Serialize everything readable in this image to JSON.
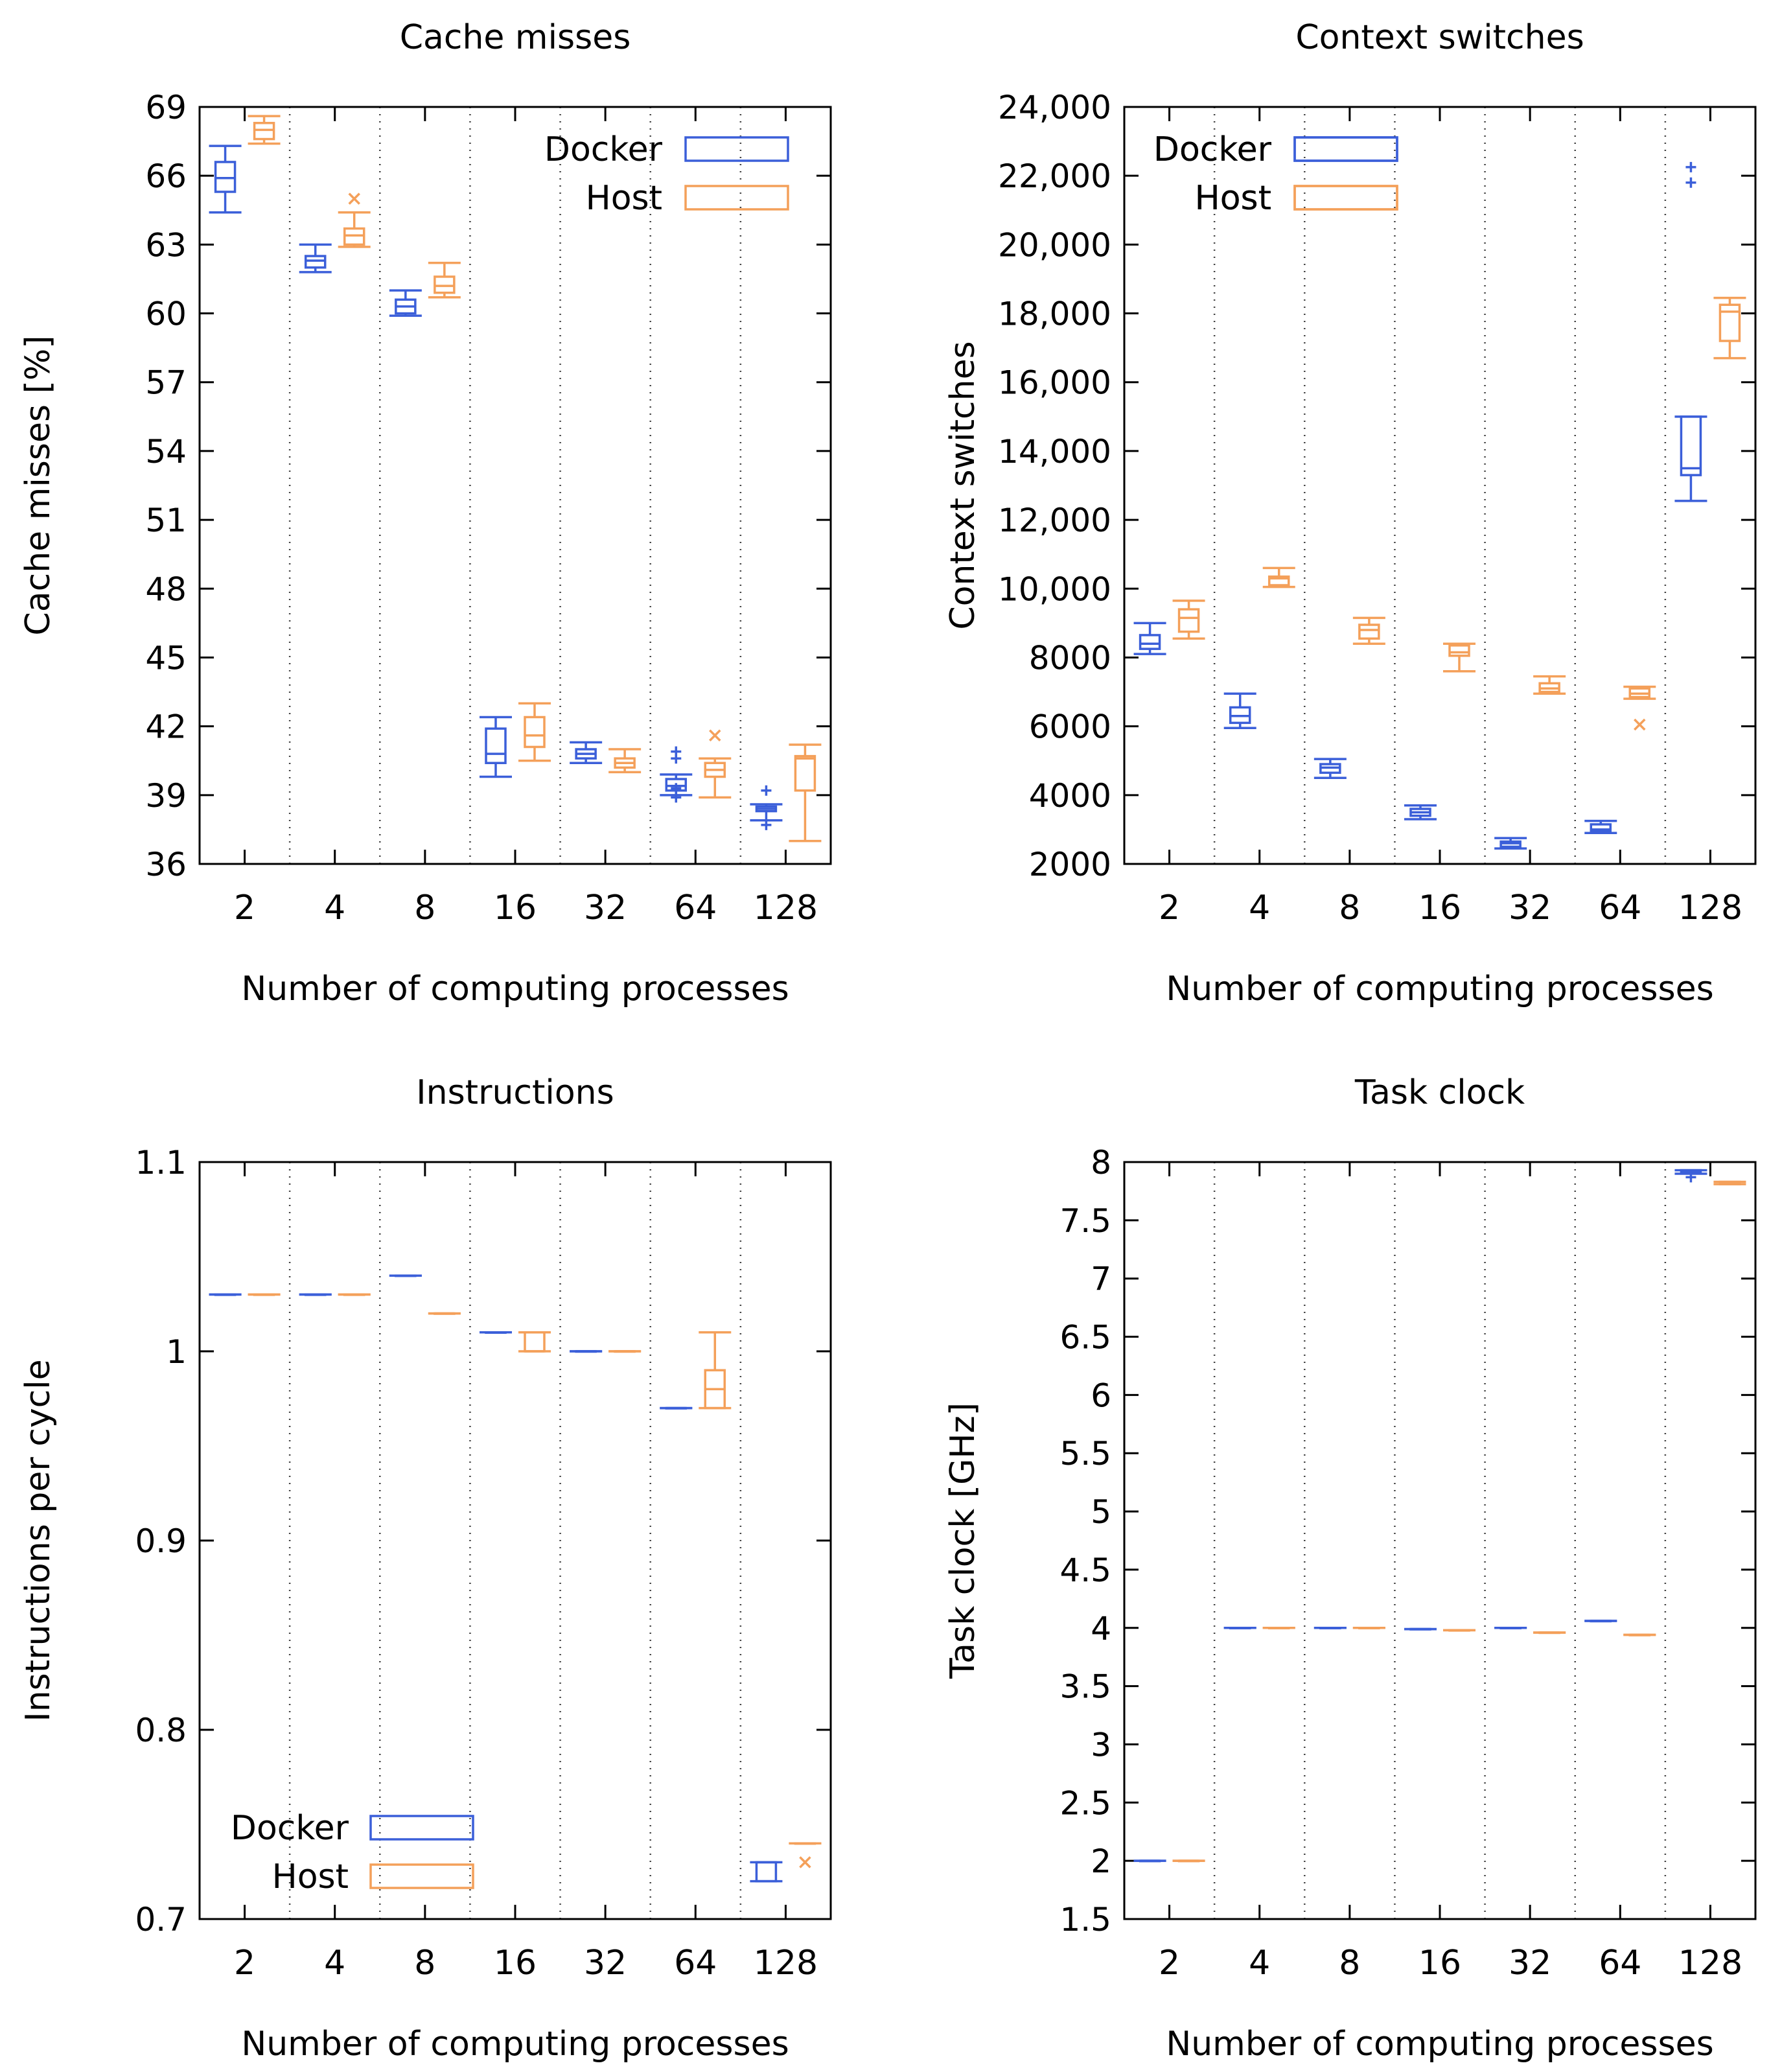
{
  "colors": {
    "docker": "#3b5fd9",
    "host": "#f4a05a",
    "axis": "#000000",
    "separator": "#444444"
  },
  "chart_data": [
    {
      "id": "cache",
      "type": "box",
      "title": "Cache misses",
      "xlabel": "Number of computing processes",
      "ylabel": "Cache misses [%]",
      "categories": [
        "2",
        "4",
        "8",
        "16",
        "32",
        "64",
        "128"
      ],
      "ylim": [
        36,
        69
      ],
      "yticks": [
        36,
        39,
        42,
        45,
        48,
        51,
        54,
        57,
        60,
        63,
        66,
        69
      ],
      "ytick_labels": [
        "36",
        "39",
        "42",
        "45",
        "48",
        "51",
        "54",
        "57",
        "60",
        "63",
        "66",
        "69"
      ],
      "legend_position": "top-right",
      "series": [
        {
          "name": "Docker",
          "boxes": [
            {
              "min": 64.4,
              "q1": 65.3,
              "median": 65.9,
              "q3": 66.6,
              "max": 67.3
            },
            {
              "min": 61.8,
              "q1": 62.0,
              "median": 62.3,
              "q3": 62.5,
              "max": 63.0
            },
            {
              "min": 59.9,
              "q1": 60.0,
              "median": 60.3,
              "q3": 60.6,
              "max": 61.0
            },
            {
              "min": 39.8,
              "q1": 40.4,
              "median": 40.8,
              "q3": 41.9,
              "max": 42.4
            },
            {
              "min": 40.4,
              "q1": 40.6,
              "median": 40.8,
              "q3": 41.0,
              "max": 41.3
            },
            {
              "min": 39.0,
              "q1": 39.2,
              "median": 39.4,
              "q3": 39.7,
              "max": 39.9,
              "outliers": [
                40.9,
                40.6,
                38.9,
                39.3
              ]
            },
            {
              "min": 37.9,
              "q1": 38.3,
              "median": 38.4,
              "q3": 38.5,
              "max": 38.6,
              "outliers": [
                39.2,
                37.7
              ]
            }
          ]
        },
        {
          "name": "Host",
          "boxes": [
            {
              "min": 67.4,
              "q1": 67.6,
              "median": 68.0,
              "q3": 68.3,
              "max": 68.6
            },
            {
              "min": 62.9,
              "q1": 63.0,
              "median": 63.4,
              "q3": 63.7,
              "max": 64.4,
              "outliers": [
                65.0
              ]
            },
            {
              "min": 60.7,
              "q1": 60.9,
              "median": 61.2,
              "q3": 61.6,
              "max": 62.2
            },
            {
              "min": 40.5,
              "q1": 41.1,
              "median": 41.6,
              "q3": 42.4,
              "max": 43.0
            },
            {
              "min": 40.0,
              "q1": 40.2,
              "median": 40.4,
              "q3": 40.6,
              "max": 41.0
            },
            {
              "min": 38.9,
              "q1": 39.8,
              "median": 40.1,
              "q3": 40.4,
              "max": 40.6,
              "outliers": [
                41.6
              ]
            },
            {
              "min": 37.0,
              "q1": 39.2,
              "median": 40.6,
              "q3": 40.7,
              "max": 41.2
            }
          ]
        }
      ]
    },
    {
      "id": "ctx",
      "type": "box",
      "title": "Context switches",
      "xlabel": "Number of computing processes",
      "ylabel": "Context switches",
      "categories": [
        "2",
        "4",
        "8",
        "16",
        "32",
        "64",
        "128"
      ],
      "ylim": [
        2000,
        24000
      ],
      "yticks": [
        2000,
        4000,
        6000,
        8000,
        10000,
        12000,
        14000,
        16000,
        18000,
        20000,
        22000,
        24000
      ],
      "ytick_labels": [
        "2000",
        "4000",
        "6000",
        "8000",
        "10,000",
        "12,000",
        "14,000",
        "16,000",
        "18,000",
        "20,000",
        "22,000",
        "24,000"
      ],
      "legend_position": "top-left",
      "series": [
        {
          "name": "Docker",
          "boxes": [
            {
              "min": 8100,
              "q1": 8250,
              "median": 8400,
              "q3": 8650,
              "max": 9000
            },
            {
              "min": 5950,
              "q1": 6100,
              "median": 6300,
              "q3": 6550,
              "max": 6950
            },
            {
              "min": 4500,
              "q1": 4650,
              "median": 4800,
              "q3": 4900,
              "max": 5050
            },
            {
              "min": 3300,
              "q1": 3400,
              "median": 3500,
              "q3": 3600,
              "max": 3700
            },
            {
              "min": 2450,
              "q1": 2500,
              "median": 2600,
              "q3": 2650,
              "max": 2750
            },
            {
              "min": 2900,
              "q1": 2950,
              "median": 3000,
              "q3": 3150,
              "max": 3250
            },
            {
              "min": 12550,
              "q1": 13300,
              "median": 13500,
              "q3": 15000,
              "max": 15000,
              "outliers": [
                22250,
                21800
              ]
            }
          ]
        },
        {
          "name": "Host",
          "boxes": [
            {
              "min": 8550,
              "q1": 8750,
              "median": 9150,
              "q3": 9400,
              "max": 9650
            },
            {
              "min": 10050,
              "q1": 10100,
              "median": 10300,
              "q3": 10350,
              "max": 10600
            },
            {
              "min": 8400,
              "q1": 8550,
              "median": 8800,
              "q3": 8950,
              "max": 9150
            },
            {
              "min": 7600,
              "q1": 8050,
              "median": 8150,
              "q3": 8350,
              "max": 8400
            },
            {
              "min": 6950,
              "q1": 7000,
              "median": 7100,
              "q3": 7250,
              "max": 7450
            },
            {
              "min": 6800,
              "q1": 6850,
              "median": 6950,
              "q3": 7100,
              "max": 7150,
              "outliers": [
                6050
              ]
            },
            {
              "min": 16700,
              "q1": 17200,
              "median": 18050,
              "q3": 18250,
              "max": 18450
            }
          ]
        }
      ]
    },
    {
      "id": "ipc",
      "type": "box",
      "title": "Instructions",
      "xlabel": "Number of computing processes",
      "ylabel": "Instructions per cycle",
      "categories": [
        "2",
        "4",
        "8",
        "16",
        "32",
        "64",
        "128"
      ],
      "ylim": [
        0.7,
        1.1
      ],
      "yticks": [
        0.7,
        0.8,
        0.9,
        1.0,
        1.1
      ],
      "ytick_labels": [
        "0.7",
        "0.8",
        "0.9",
        "1",
        "1.1"
      ],
      "legend_position": "bottom-left",
      "series": [
        {
          "name": "Docker",
          "boxes": [
            {
              "min": 1.03,
              "q1": 1.03,
              "median": 1.03,
              "q3": 1.03,
              "max": 1.03
            },
            {
              "min": 1.03,
              "q1": 1.03,
              "median": 1.03,
              "q3": 1.03,
              "max": 1.03
            },
            {
              "min": 1.04,
              "q1": 1.04,
              "median": 1.04,
              "q3": 1.04,
              "max": 1.04
            },
            {
              "min": 1.01,
              "q1": 1.01,
              "median": 1.01,
              "q3": 1.01,
              "max": 1.01
            },
            {
              "min": 1.0,
              "q1": 1.0,
              "median": 1.0,
              "q3": 1.0,
              "max": 1.0
            },
            {
              "min": 0.97,
              "q1": 0.97,
              "median": 0.97,
              "q3": 0.97,
              "max": 0.97
            },
            {
              "min": 0.72,
              "q1": 0.72,
              "median": 0.73,
              "q3": 0.73,
              "max": 0.73
            }
          ]
        },
        {
          "name": "Host",
          "boxes": [
            {
              "min": 1.03,
              "q1": 1.03,
              "median": 1.03,
              "q3": 1.03,
              "max": 1.03
            },
            {
              "min": 1.03,
              "q1": 1.03,
              "median": 1.03,
              "q3": 1.03,
              "max": 1.03
            },
            {
              "min": 1.02,
              "q1": 1.02,
              "median": 1.02,
              "q3": 1.02,
              "max": 1.02
            },
            {
              "min": 1.0,
              "q1": 1.0,
              "median": 1.0,
              "q3": 1.01,
              "max": 1.01
            },
            {
              "min": 1.0,
              "q1": 1.0,
              "median": 1.0,
              "q3": 1.0,
              "max": 1.0
            },
            {
              "min": 0.97,
              "q1": 0.97,
              "median": 0.98,
              "q3": 0.99,
              "max": 1.01
            },
            {
              "min": 0.74,
              "q1": 0.74,
              "median": 0.74,
              "q3": 0.74,
              "max": 0.74,
              "outliers": [
                0.73
              ]
            }
          ]
        }
      ]
    },
    {
      "id": "task",
      "type": "box",
      "title": "Task clock",
      "xlabel": "Number of computing processes",
      "ylabel": "Task clock [GHz]",
      "categories": [
        "2",
        "4",
        "8",
        "16",
        "32",
        "64",
        "128"
      ],
      "ylim": [
        1.5,
        8
      ],
      "yticks": [
        1.5,
        2,
        2.5,
        3,
        3.5,
        4,
        4.5,
        5,
        5.5,
        6,
        6.5,
        7,
        7.5,
        8
      ],
      "ytick_labels": [
        "1.5",
        "2",
        "2.5",
        "3",
        "3.5",
        "4",
        "4.5",
        "5",
        "5.5",
        "6",
        "6.5",
        "7",
        "7.5",
        "8"
      ],
      "legend_position": "top-left",
      "series": [
        {
          "name": "Docker",
          "boxes": [
            {
              "min": 2.0,
              "q1": 2.0,
              "median": 2.0,
              "q3": 2.0,
              "max": 2.0
            },
            {
              "min": 4.0,
              "q1": 4.0,
              "median": 4.0,
              "q3": 4.0,
              "max": 4.0
            },
            {
              "min": 4.0,
              "q1": 4.0,
              "median": 4.0,
              "q3": 4.0,
              "max": 4.0
            },
            {
              "min": 3.99,
              "q1": 3.99,
              "median": 3.99,
              "q3": 3.99,
              "max": 3.99
            },
            {
              "min": 4.0,
              "q1": 4.0,
              "median": 4.0,
              "q3": 4.0,
              "max": 4.0
            },
            {
              "min": 4.06,
              "q1": 4.06,
              "median": 4.06,
              "q3": 4.06,
              "max": 4.06
            },
            {
              "min": 7.9,
              "q1": 7.91,
              "median": 7.92,
              "q3": 7.93,
              "max": 7.93,
              "outliers": [
                7.87
              ]
            }
          ]
        },
        {
          "name": "Host",
          "boxes": [
            {
              "min": 2.0,
              "q1": 2.0,
              "median": 2.0,
              "q3": 2.0,
              "max": 2.0
            },
            {
              "min": 4.0,
              "q1": 4.0,
              "median": 4.0,
              "q3": 4.0,
              "max": 4.0
            },
            {
              "min": 4.0,
              "q1": 4.0,
              "median": 4.0,
              "q3": 4.0,
              "max": 4.0
            },
            {
              "min": 3.98,
              "q1": 3.98,
              "median": 3.98,
              "q3": 3.98,
              "max": 3.98
            },
            {
              "min": 3.96,
              "q1": 3.96,
              "median": 3.96,
              "q3": 3.96,
              "max": 3.96
            },
            {
              "min": 3.94,
              "q1": 3.94,
              "median": 3.94,
              "q3": 3.94,
              "max": 3.94
            },
            {
              "min": 7.81,
              "q1": 7.81,
              "median": 7.82,
              "q3": 7.83,
              "max": 7.83
            }
          ]
        }
      ]
    }
  ]
}
